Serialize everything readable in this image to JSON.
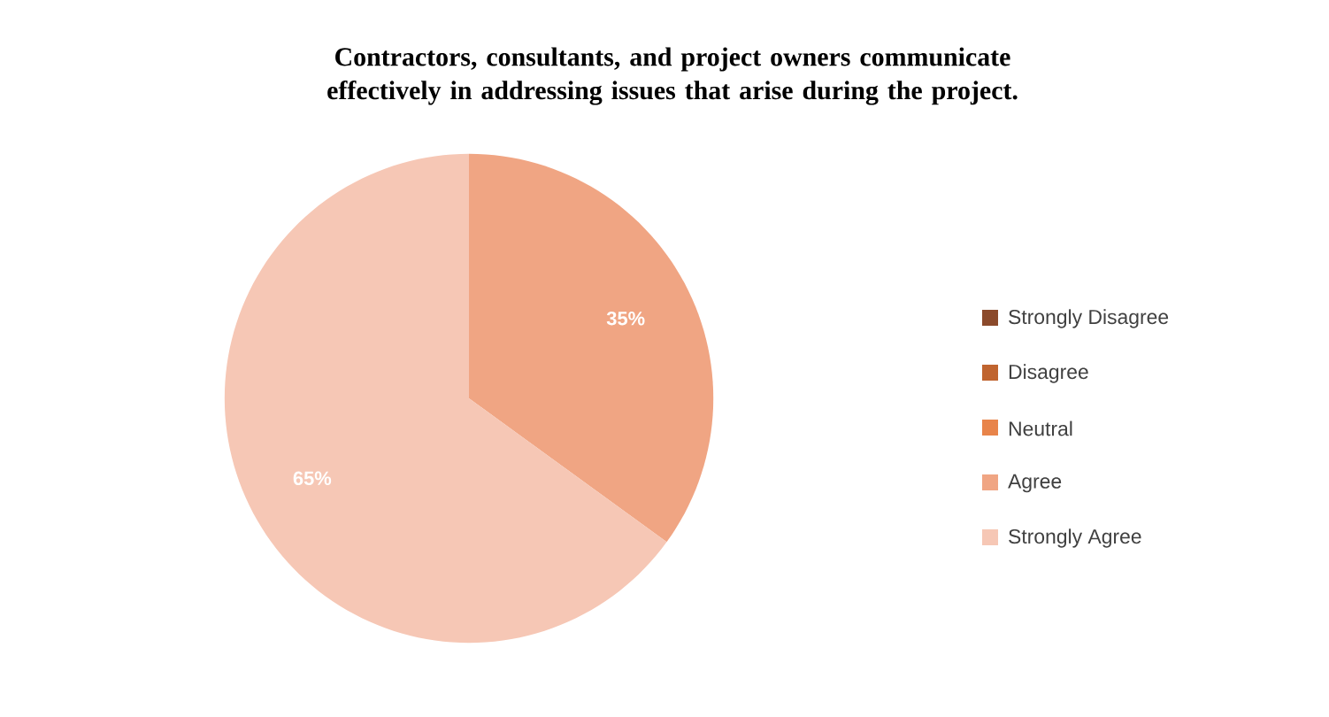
{
  "chart_data": {
    "type": "pie",
    "title": "Contractors, consultants, and project owners communicate effectively in addressing issues that arise during the project.",
    "categories": [
      "Strongly Disagree",
      "Disagree",
      "Neutral",
      "Agree",
      "Strongly Agree"
    ],
    "values": [
      0,
      0,
      0,
      35,
      65
    ],
    "colors": [
      "#8b4a2b",
      "#c0642f",
      "#e8844a",
      "#f0a583",
      "#f6c7b5"
    ],
    "value_labels": [
      null,
      null,
      null,
      "35%",
      "65%"
    ],
    "legend": "right"
  }
}
